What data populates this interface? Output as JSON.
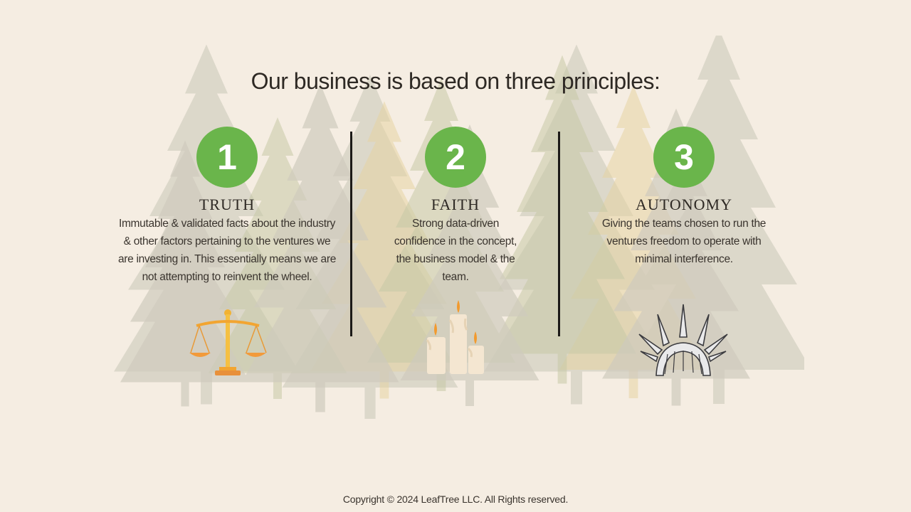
{
  "heading": "Our business is based on three principles:",
  "principles": [
    {
      "number": "1",
      "title": "TRUTH",
      "description": "Immutable & validated facts about the industry & other factors pertaining to the ventures we are investing in. This essentially means we are not attempting to reinvent the wheel.",
      "icon": "scales-of-justice-icon"
    },
    {
      "number": "2",
      "title": "FAITH",
      "description": "Strong data-driven confidence in the concept, the business model & the team.",
      "icon": "candles-icon"
    },
    {
      "number": "3",
      "title": "AUTONOMY",
      "description": "Giving the teams chosen to run the ventures freedom to operate with minimal interference.",
      "icon": "liberty-crown-icon"
    }
  ],
  "footer": {
    "copyright": "Copyright © 2024 LeafTree LLC. All Rights reserved."
  },
  "colors": {
    "background": "#f5ede2",
    "badge": "#6ab54b",
    "text": "#2e2924"
  }
}
